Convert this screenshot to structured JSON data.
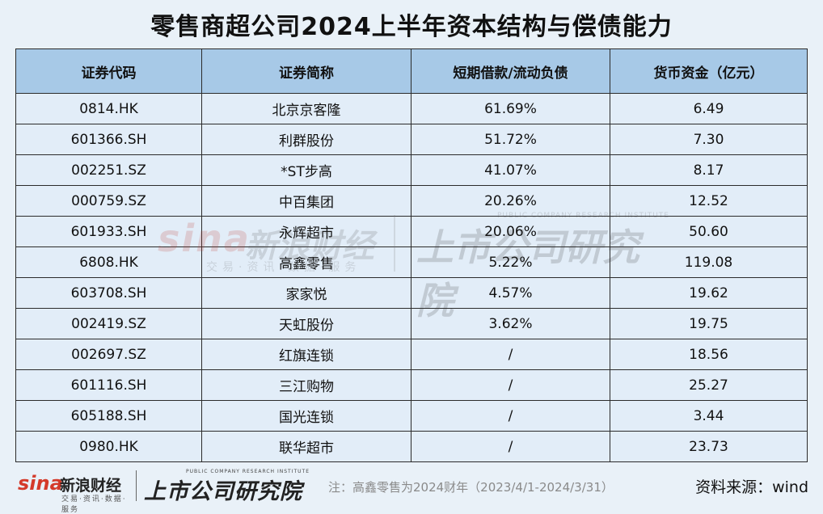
{
  "title": "零售商超公司2024上半年资本结构与偿债能力",
  "table": {
    "headers": [
      "证券代码",
      "证券简称",
      "短期借款/流动负债",
      "货币资金（亿元）"
    ],
    "rows": [
      [
        "0814.HK",
        "北京京客隆",
        "61.69%",
        "6.49"
      ],
      [
        "601366.SH",
        "利群股份",
        "51.72%",
        "7.30"
      ],
      [
        "002251.SZ",
        "*ST步高",
        "41.07%",
        "8.17"
      ],
      [
        "000759.SZ",
        "中百集团",
        "20.26%",
        "12.52"
      ],
      [
        "601933.SH",
        "永辉超市",
        "20.06%",
        "50.60"
      ],
      [
        "6808.HK",
        "高鑫零售",
        "5.22%",
        "119.08"
      ],
      [
        "603708.SH",
        "家家悦",
        "4.57%",
        "19.62"
      ],
      [
        "002419.SZ",
        "天虹股份",
        "3.62%",
        "19.75"
      ],
      [
        "002697.SZ",
        "红旗连锁",
        "/",
        "18.56"
      ],
      [
        "601116.SH",
        "三江购物",
        "/",
        "25.27"
      ],
      [
        "605188.SH",
        "国光连锁",
        "/",
        "3.44"
      ],
      [
        "0980.HK",
        "联华超市",
        "/",
        "23.73"
      ]
    ]
  },
  "watermark": {
    "sina": "sina",
    "sina_cn": "新浪财经",
    "sina_sub": "交易·资讯·数据·服务",
    "institute": "上市公司研究院",
    "institute_en": "PUBLIC COMPANY RESEARCH INSTITUTE"
  },
  "footer": {
    "sina": "sina",
    "sina_cn": "新浪财经",
    "sina_sub": "交易·资讯·数据·服务",
    "institute": "上市公司研究院",
    "institute_en": "PUBLIC COMPANY RESEARCH INSTITUTE",
    "note": "注：高鑫零售为2024财年（2023/4/1-2024/3/31）",
    "source": "资料来源：wind"
  }
}
